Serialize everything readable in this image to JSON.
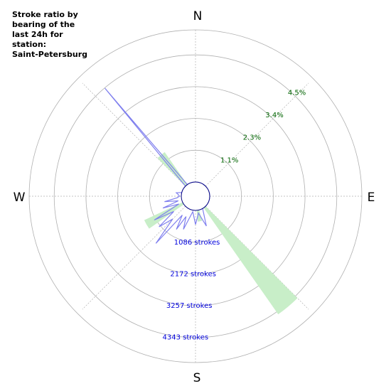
{
  "chart_data": {
    "type": "polar",
    "title_lines": [
      "Stroke ratio by",
      "bearing of the",
      "last 24h for",
      "station:",
      "Saint-Petersburg"
    ],
    "compass": {
      "north": "N",
      "east": "E",
      "south": "S",
      "west": "W"
    },
    "ratio_rings": [
      "1.1%",
      "2.3%",
      "3.4%",
      "4.5%"
    ],
    "stroke_rings": [
      "1086 strokes",
      "2172 strokes",
      "3257 strokes",
      "4343 strokes"
    ],
    "stroke_ring_values": [
      1086,
      2172,
      3257,
      4343
    ],
    "colors": {
      "stroke_count": "#8080ee",
      "stroke_ratio": "#c8eec8",
      "ratio_labels": "#006400",
      "count_labels": "#0000dd",
      "grid": "#b0b0b0"
    },
    "stroke_count_series": {
      "bearing_deg": [
        0,
        10,
        20,
        30,
        40,
        50,
        60,
        70,
        80,
        90,
        100,
        110,
        120,
        130,
        140,
        150,
        160,
        170,
        180,
        190,
        200,
        205,
        210,
        215,
        220,
        225,
        230,
        235,
        240,
        245,
        250,
        255,
        260,
        265,
        270,
        275,
        280,
        285,
        290,
        295,
        300,
        305,
        310,
        315,
        320,
        325,
        330,
        335,
        340,
        345,
        350
      ],
      "strokes": [
        0,
        0,
        0,
        0,
        0,
        0,
        0,
        0,
        0,
        0,
        0,
        0,
        0,
        0,
        0,
        0,
        600,
        100,
        480,
        50,
        720,
        280,
        820,
        300,
        1620,
        620,
        1140,
        420,
        1140,
        140,
        700,
        120,
        590,
        150,
        60,
        100,
        180,
        0,
        0,
        0,
        0,
        0,
        0,
        0,
        4330,
        0,
        0,
        0,
        0,
        0,
        0
      ]
    },
    "stroke_ratio_series": {
      "bearing_deg": [
        0,
        10,
        20,
        30,
        40,
        50,
        60,
        70,
        80,
        90,
        100,
        110,
        120,
        130,
        140,
        150,
        160,
        170,
        180,
        190,
        200,
        210,
        220,
        230,
        240,
        250,
        260,
        270,
        280,
        290,
        300,
        310,
        320,
        330,
        340,
        350
      ],
      "ratio_pct": [
        0,
        0,
        0,
        0,
        0,
        0,
        0,
        0,
        0,
        0,
        0,
        0,
        0,
        0,
        4.6,
        0,
        0,
        0.4,
        0,
        0,
        0,
        0,
        0,
        0,
        1.5,
        0,
        0,
        0,
        0,
        0,
        0,
        0,
        1.4,
        0,
        0,
        0
      ]
    }
  }
}
